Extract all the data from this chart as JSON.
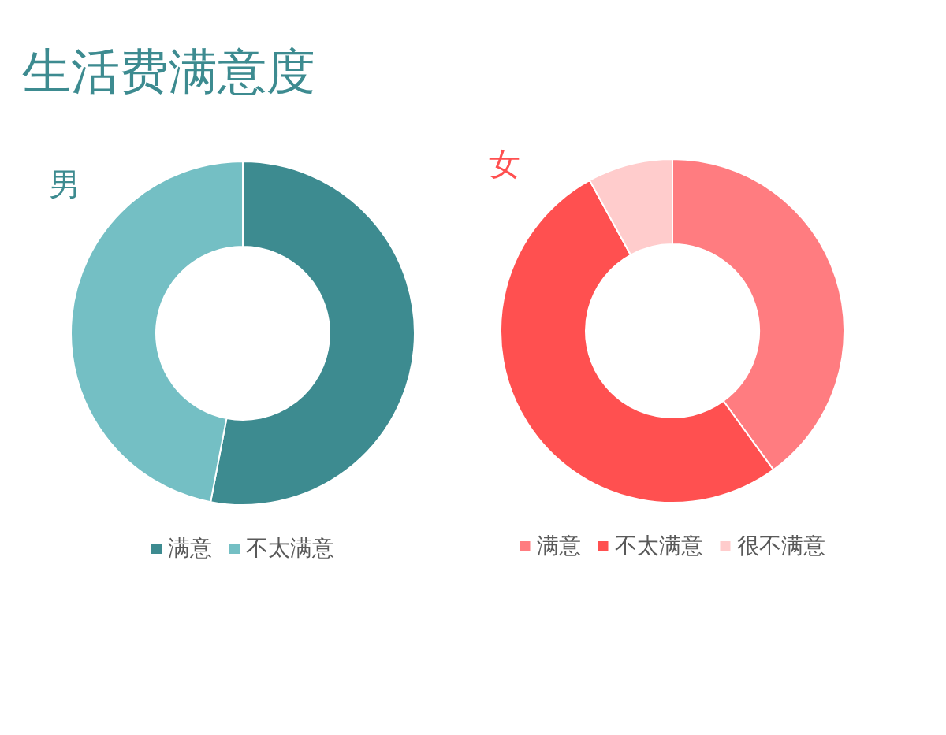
{
  "chart_data": [
    {
      "type": "donut",
      "title": "生活费满意度",
      "subtitle": "男",
      "categories": [
        "满意",
        "不太满意"
      ],
      "values": [
        53,
        47
      ],
      "colors": [
        "#3d8b90",
        "#74bfc4"
      ],
      "legend": "bottom"
    },
    {
      "type": "donut",
      "title": "女",
      "categories": [
        "满意",
        "不太满意",
        "很不满意"
      ],
      "values": [
        40,
        52,
        8
      ],
      "colors": [
        "#ff7c80",
        "#ff5050",
        "#ffcccc"
      ],
      "legend": "bottom"
    }
  ]
}
